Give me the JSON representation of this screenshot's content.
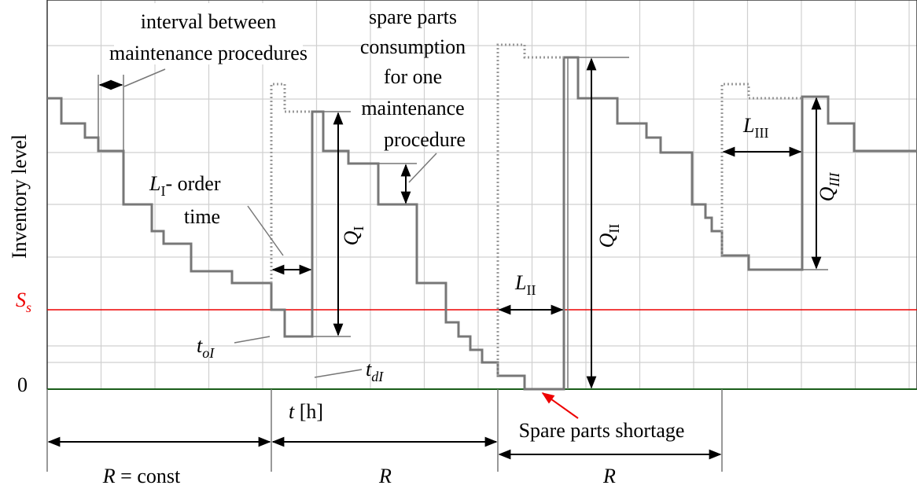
{
  "labels": {
    "interval": [
      "interval between",
      "maintenance procedures"
    ],
    "consumption": [
      "spare parts",
      "consumption",
      "for one",
      "maintenance",
      "procedure"
    ],
    "y_axis": "Inventory level",
    "safety_stock": {
      "main": "S",
      "sub": "s"
    },
    "zero": "0",
    "order_time": {
      "main": "L",
      "sub": "I",
      "rest": "- order",
      "line2": "time"
    },
    "q1": {
      "main": "Q",
      "sub": "I"
    },
    "t_order": {
      "main": "t",
      "sub": "oI"
    },
    "t_delivery": {
      "main": "t",
      "sub": "dI"
    },
    "time_axis": {
      "main": "t",
      "rest": " [h]"
    },
    "l2": {
      "main": "L",
      "sub": "II"
    },
    "q2": {
      "main": "Q",
      "sub": "II"
    },
    "l3": {
      "main": "L",
      "sub": "III"
    },
    "q3": {
      "main": "Q",
      "sub": "III"
    },
    "shortage": "Spare parts shortage",
    "periods": [
      {
        "main": "R",
        "rest": " = const"
      },
      {
        "main": "R"
      },
      {
        "main": "R"
      }
    ]
  }
}
